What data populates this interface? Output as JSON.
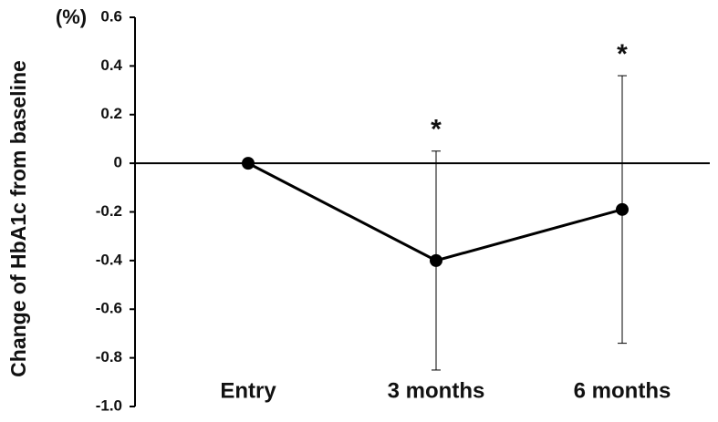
{
  "chart_data": {
    "type": "line",
    "y_label": "Change of HbA1c from baseline",
    "y_unit": "(%)",
    "categories": [
      "Entry",
      "3 months",
      "6 months"
    ],
    "series": [
      {
        "name": null,
        "color": "#000000",
        "values": [
          0,
          -0.4,
          -0.19
        ],
        "errors": [
          null,
          0.45,
          0.55
        ]
      }
    ],
    "annotations": [
      {
        "text": "*",
        "category": "3 months"
      },
      {
        "text": "*",
        "category": "6 months"
      }
    ],
    "ylim": [
      -1.0,
      0.6
    ],
    "yticks": [
      0.6,
      0.4,
      0.2,
      0,
      -0.2,
      -0.4,
      -0.6,
      -0.8,
      {
        "value": -1.0,
        "label": "-1.0"
      }
    ],
    "zero_line": true
  }
}
